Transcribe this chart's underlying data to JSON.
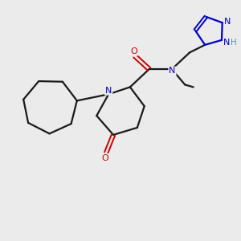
{
  "background_color": "#ebebeb",
  "bond_color": "#1a1a1a",
  "nitrogen_color": "#0000cc",
  "oxygen_color": "#cc0000",
  "hydrogen_color": "#5599aa",
  "figsize": [
    3.0,
    3.0
  ],
  "dpi": 100,
  "xlim": [
    0,
    10
  ],
  "ylim": [
    0,
    10
  ]
}
